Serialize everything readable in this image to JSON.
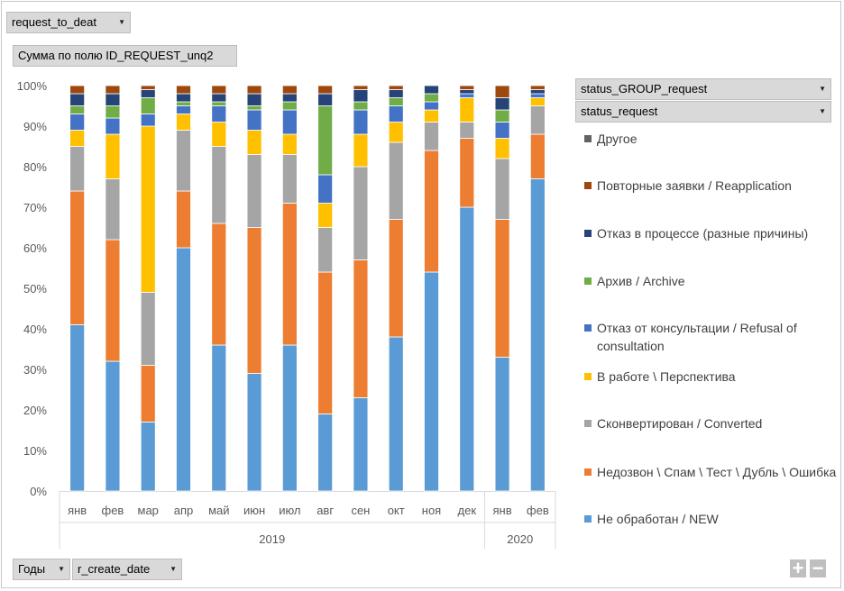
{
  "filter_field": "request_to_deat",
  "values_field": "Сумма по полю ID_REQUEST_unq2",
  "legend_fields": [
    "status_GROUP_request",
    "status_request"
  ],
  "axis_fields": [
    "Годы",
    "r_create_date"
  ],
  "zoom": {
    "plus": "+",
    "minus": "−"
  },
  "chart_data": {
    "type": "bar",
    "stacked": true,
    "percent": true,
    "ylim": [
      0,
      100
    ],
    "yticks": [
      "0%",
      "10%",
      "20%",
      "30%",
      "40%",
      "50%",
      "60%",
      "70%",
      "80%",
      "90%",
      "100%"
    ],
    "categories": [
      "янв",
      "фев",
      "мар",
      "апр",
      "май",
      "июн",
      "июл",
      "авг",
      "сен",
      "окт",
      "ноя",
      "дек",
      "янв",
      "фев"
    ],
    "year_groups": [
      {
        "label": "2019",
        "count": 12
      },
      {
        "label": "2020",
        "count": 2
      }
    ],
    "series": [
      {
        "name": "Не обработан / NEW",
        "color": "#5b9bd5",
        "values": [
          41,
          32,
          17,
          60,
          36,
          29,
          36,
          19,
          23,
          38,
          54,
          70,
          33,
          77
        ]
      },
      {
        "name": "Недозвон \\ Спам \\ Тест \\ Дубль \\ Ошибка",
        "color": "#ed7d31",
        "values": [
          33,
          30,
          14,
          14,
          30,
          36,
          35,
          35,
          34,
          29,
          30,
          17,
          34,
          11
        ]
      },
      {
        "name": "Сконвертирован / Converted",
        "color": "#a5a5a5",
        "values": [
          11,
          15,
          18,
          15,
          19,
          18,
          12,
          11,
          23,
          19,
          7,
          4,
          15,
          7
        ]
      },
      {
        "name": "В работе \\ Перспектива",
        "color": "#ffc000",
        "values": [
          4,
          11,
          41,
          4,
          6,
          6,
          5,
          6,
          8,
          5,
          3,
          6,
          5,
          2
        ]
      },
      {
        "name": "Отказ от консультации / Refusal of consultation",
        "color": "#4472c4",
        "values": [
          4,
          4,
          3,
          2,
          4,
          5,
          6,
          7,
          6,
          4,
          2,
          1,
          4,
          1
        ]
      },
      {
        "name": "Архив / Archive",
        "color": "#70ad47",
        "values": [
          2,
          3,
          4,
          1,
          1,
          1,
          2,
          17,
          2,
          2,
          2,
          0,
          3,
          0
        ]
      },
      {
        "name": "Отказ в процессе (разные причины)",
        "color": "#264478",
        "values": [
          3,
          3,
          2,
          2,
          2,
          3,
          2,
          3,
          3,
          2,
          2,
          1,
          3,
          1
        ]
      },
      {
        "name": "Повторные заявки / Reapplication",
        "color": "#9e480e",
        "values": [
          2,
          2,
          1,
          2,
          2,
          2,
          2,
          2,
          1,
          1,
          0,
          1,
          3,
          1
        ]
      },
      {
        "name": "Другое",
        "color": "#636363",
        "values": [
          0,
          0,
          0,
          0,
          0,
          0,
          0,
          0,
          0,
          0,
          0,
          0,
          0,
          0
        ]
      }
    ]
  }
}
